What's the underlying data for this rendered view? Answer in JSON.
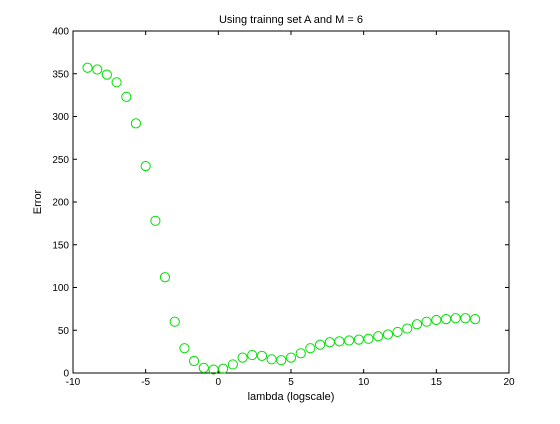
{
  "chart_data": {
    "type": "scatter",
    "title": "Using trainng set A and M = 6",
    "xlabel": "lambda (logscale)",
    "ylabel": "Error",
    "xlim": [
      -10,
      20
    ],
    "ylim": [
      0,
      400
    ],
    "xticks": [
      "-10",
      "-5",
      "0",
      "5",
      "10",
      "15",
      "20"
    ],
    "yticks": [
      "0",
      "50",
      "100",
      "150",
      "200",
      "250",
      "300",
      "350",
      "400"
    ],
    "grid": false,
    "marker": "circle",
    "marker_color": "#00e000",
    "x": [
      -9,
      -8.33,
      -7.67,
      -7,
      -6.33,
      -5.67,
      -5,
      -4.33,
      -3.67,
      -3,
      -2.33,
      -1.67,
      -1,
      -0.33,
      0.33,
      1,
      1.67,
      2.33,
      3,
      3.67,
      4.33,
      5,
      5.67,
      6.33,
      7,
      7.67,
      8.33,
      9,
      9.67,
      10.33,
      11,
      11.67,
      12.33,
      13,
      13.67,
      14.33,
      15,
      15.67,
      16.33,
      17,
      17.67
    ],
    "y": [
      357,
      355,
      349,
      340,
      323,
      292,
      242,
      178,
      112,
      60,
      29,
      14,
      6,
      4,
      5,
      10,
      18,
      21,
      20,
      16,
      15,
      18,
      23,
      29,
      33,
      36,
      37,
      38,
      39,
      40,
      43,
      45,
      48,
      52,
      57,
      60,
      62,
      63,
      64,
      64,
      63
    ]
  }
}
